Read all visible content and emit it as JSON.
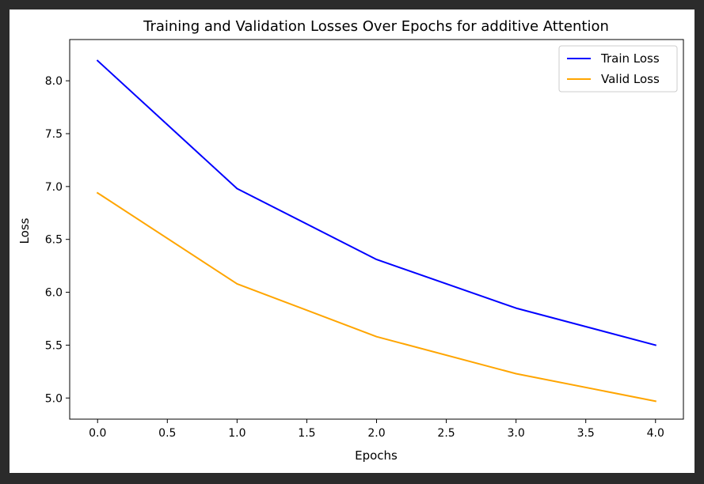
{
  "chart_data": {
    "type": "line",
    "title": "Training and Validation Losses Over Epochs for additive Attention",
    "xlabel": "Epochs",
    "ylabel": "Loss",
    "x": [
      0,
      1,
      2,
      3,
      4
    ],
    "series": [
      {
        "name": "Train Loss",
        "color": "#0000ff",
        "values": [
          8.19,
          6.98,
          6.31,
          5.85,
          5.5
        ]
      },
      {
        "name": "Valid Loss",
        "color": "#ffa500",
        "values": [
          6.94,
          6.08,
          5.58,
          5.23,
          4.97
        ]
      }
    ],
    "xlim": [
      -0.2,
      4.2
    ],
    "ylim": [
      4.8,
      8.39
    ],
    "xticks": [
      "0.0",
      "0.5",
      "1.0",
      "1.5",
      "2.0",
      "2.5",
      "3.0",
      "3.5",
      "4.0"
    ],
    "yticks": [
      "5.0",
      "5.5",
      "6.0",
      "6.5",
      "7.0",
      "7.5",
      "8.0"
    ],
    "grid": false,
    "legend_position": "upper right"
  }
}
